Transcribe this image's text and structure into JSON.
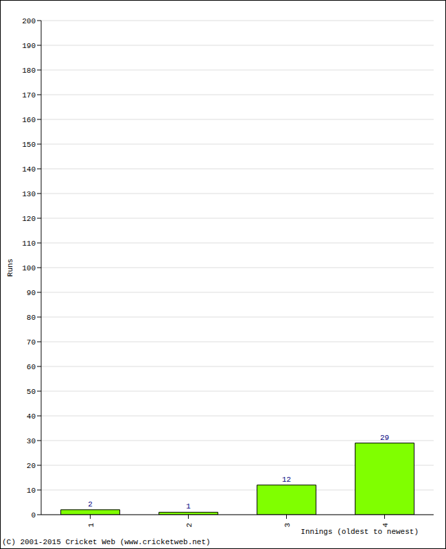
{
  "chart_data": {
    "type": "bar",
    "categories": [
      "1",
      "2",
      "3",
      "4"
    ],
    "values": [
      2,
      1,
      12,
      29
    ],
    "color": "#80ff00",
    "ylim": [
      0,
      200
    ],
    "yticks": [
      0,
      10,
      20,
      30,
      40,
      50,
      60,
      70,
      80,
      90,
      100,
      110,
      120,
      130,
      140,
      150,
      160,
      170,
      180,
      190,
      200
    ],
    "grid": true,
    "data_labels": true,
    "x_label": "Innings (oldest to newest)",
    "y_label": "Runs",
    "annotations": [
      "(C) 2001-2015 Cricket Web (www.cricketweb.net)"
    ]
  }
}
